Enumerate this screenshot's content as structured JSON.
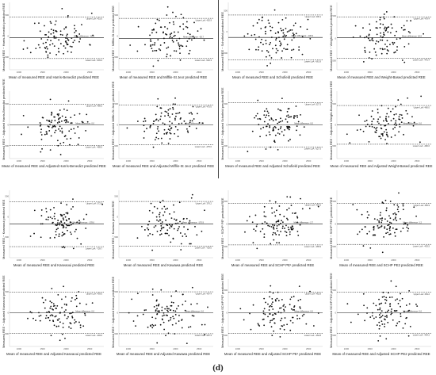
{
  "caption": "(d)",
  "chart_data": [
    {
      "type": "scatter",
      "xlabel": "Mean of measured REE and Harris-Benedict predicted REE",
      "ylabel": "Measured REE − Harris-Benedict predicted REE",
      "mean_label": "Mean difference: -40.9",
      "upper_label": "Upper LoA: 451.6",
      "lower_label": "Lower LoA: -533.4",
      "x_ticks": [
        "1000",
        "1500",
        "2000",
        "2500"
      ],
      "y_ticks": [
        "-500",
        "0",
        "500"
      ],
      "mean": -40.9,
      "upper": 451.6,
      "lower": -533.4,
      "xlim": [
        800,
        2800
      ],
      "ylim": [
        -800,
        800
      ],
      "seed": 11
    },
    {
      "type": "scatter",
      "xlabel": "Mean of measured REE and Mifflin-St Jeor predicted REE",
      "ylabel": "Measured REE − Mifflin-St Jeor predicted REE",
      "mean_label": "Mean difference: -55.7",
      "upper_label": "Upper LoA: 420.9",
      "lower_label": "Lower LoA: -532.3",
      "x_ticks": [
        "1000",
        "1500",
        "2000",
        "2500"
      ],
      "y_ticks": [
        "-500",
        "0",
        "500"
      ],
      "mean": -55.7,
      "upper": 420.9,
      "lower": -532.3,
      "xlim": [
        800,
        2800
      ],
      "ylim": [
        -800,
        800
      ],
      "seed": 23
    },
    {
      "type": "scatter",
      "xlabel": "Mean of measured REE and Schofield predicted REE",
      "ylabel": "Measured REE − Schofield predicted REE",
      "mean_label": "Mean difference: -130.9",
      "upper_label": "Upper LoA: 400.1",
      "lower_label": "Lower LoA: -661.9",
      "x_ticks": [
        "1000",
        "1500",
        "2000",
        "2500"
      ],
      "y_ticks": [
        "-500",
        "0",
        "500"
      ],
      "mean": -130.9,
      "upper": 400.1,
      "lower": -661.9,
      "xlim": [
        800,
        2800
      ],
      "ylim": [
        -900,
        700
      ],
      "seed": 37
    },
    {
      "type": "scatter",
      "xlabel": "Mean of measured REE and Weight-Based predicted REE",
      "ylabel": "Measured REE − Weight-Based predicted REE",
      "mean_label": "Mean difference: 18.5",
      "upper_label": "Upper LoA: 478.4",
      "lower_label": "Lower LoA: -441.4",
      "x_ticks": [
        "1000",
        "1500",
        "2000",
        "2500"
      ],
      "y_ticks": [
        "-500",
        "0",
        "500"
      ],
      "mean": 18.5,
      "upper": 478.4,
      "lower": -441.4,
      "xlim": [
        800,
        2800
      ],
      "ylim": [
        -700,
        800
      ],
      "seed": 41
    },
    {
      "type": "scatter",
      "xlabel": "Mean of measured REE and Adjusted Harris-Benedict predicted REE",
      "ylabel": "Measured REE − Adjusted Harris-Benedict predicted REE",
      "mean_label": "Mean difference: 0.0",
      "upper_label": "Upper LoA: 489.5",
      "lower_label": "Lower LoA: -489.5",
      "x_ticks": [
        "1000",
        "1500",
        "2000",
        "2500"
      ],
      "y_ticks": [
        "-500",
        "0",
        "500"
      ],
      "mean": 0.0,
      "upper": 489.5,
      "lower": -489.5,
      "xlim": [
        800,
        2800
      ],
      "ylim": [
        -800,
        800
      ],
      "seed": 53
    },
    {
      "type": "scatter",
      "xlabel": "Mean of measured REE and Adjusted Mifflin-St Jeor predicted REE",
      "ylabel": "Measured REE − Adjusted Mifflin-St Jeor predicted REE",
      "mean_label": "Mean difference: 0.0",
      "upper_label": "Upper LoA: 475.6",
      "lower_label": "Lower LoA: -475.6",
      "x_ticks": [
        "1000",
        "1500",
        "2000",
        "2500"
      ],
      "y_ticks": [
        "-500",
        "0",
        "500"
      ],
      "mean": 0.0,
      "upper": 475.6,
      "lower": -475.6,
      "xlim": [
        800,
        2800
      ],
      "ylim": [
        -800,
        800
      ],
      "seed": 67
    },
    {
      "type": "scatter",
      "xlabel": "Mean of measured REE and Adjusted Schofield predicted REE",
      "ylabel": "Measured REE − Adjusted Schofield predicted REE",
      "mean_label": "Mean difference: 0.0",
      "upper_label": "Upper LoA: 527.3",
      "lower_label": "Lower LoA: -527.3",
      "x_ticks": [
        "1000",
        "1500",
        "2000",
        "2500"
      ],
      "y_ticks": [
        "-500",
        "0",
        "500"
      ],
      "mean": 0.0,
      "upper": 527.3,
      "lower": -527.3,
      "xlim": [
        800,
        2800
      ],
      "ylim": [
        -800,
        800
      ],
      "seed": 71
    },
    {
      "type": "scatter",
      "xlabel": "Mean of measured REE and Adjusted Weight-Based predicted REE",
      "ylabel": "Measured REE − Adjusted Weight-Based predicted REE",
      "mean_label": "Mean difference: 0.0",
      "upper_label": "Upper LoA: 460.0",
      "lower_label": "Lower LoA: -460.0",
      "x_ticks": [
        "1000",
        "1500",
        "2000",
        "2500"
      ],
      "y_ticks": [
        "-500",
        "0",
        "500"
      ],
      "mean": 0.0,
      "upper": 460.0,
      "lower": -460.0,
      "xlim": [
        800,
        2800
      ],
      "ylim": [
        -800,
        800
      ],
      "seed": 83
    },
    {
      "type": "scatter",
      "xlabel": "Mean of measured REE and Kaseaoui predicted REE",
      "ylabel": "Measured REE − Kaseaoui predicted REE",
      "mean_label": "Mean difference: -178.6",
      "upper_label": "Upper LoA: 372.5",
      "lower_label": "Lower LoA: -729.7",
      "x_ticks": [
        "1000",
        "1500",
        "2000",
        "2500"
      ],
      "y_ticks": [
        "-500",
        "0",
        "500"
      ],
      "mean": -178.6,
      "upper": 372.5,
      "lower": -729.7,
      "xlim": [
        800,
        2800
      ],
      "ylim": [
        -1000,
        650
      ],
      "seed": 97
    },
    {
      "type": "scatter",
      "xlabel": "Mean of measured REE and Kawawa predicted REE",
      "ylabel": "Measured REE − Kawawa predicted REE",
      "mean_label": "Mean difference: -170.9",
      "upper_label": "Upper LoA: 376.2",
      "lower_label": "Lower LoA: -718.0",
      "x_ticks": [
        "1000",
        "1500",
        "2000",
        "2500"
      ],
      "y_ticks": [
        "-500",
        "0",
        "500"
      ],
      "mean": -170.9,
      "upper": 376.2,
      "lower": -718.0,
      "xlim": [
        800,
        2800
      ],
      "ylim": [
        -1000,
        650
      ],
      "seed": 101
    },
    {
      "type": "scatter",
      "xlabel": "Mean of measured REE and SCHP PE¹ predicted REE",
      "ylabel": "Measured REE − SCHP PE¹ predicted REE",
      "mean_label": "Mean difference: -2.7",
      "upper_label": "Upper LoA: 460.5",
      "lower_label": "Lower LoA: -465.9",
      "x_ticks": [
        "1000",
        "1500",
        "2000",
        "2500"
      ],
      "y_ticks": [
        "-500",
        "0",
        "500"
      ],
      "mean": -2.7,
      "upper": 460.5,
      "lower": -465.9,
      "xlim": [
        800,
        2800
      ],
      "ylim": [
        -750,
        750
      ],
      "seed": 113
    },
    {
      "type": "scatter",
      "xlabel": "Mean of measured REE and SCHP PE2 predicted REE",
      "ylabel": "Measured REE − SCHP PE2 predicted REE",
      "mean_label": "Mean difference: 1.2",
      "upper_label": "Upper LoA: 455.9",
      "lower_label": "Lower LoA: -453.5",
      "x_ticks": [
        "1000",
        "1500",
        "2000",
        "2500"
      ],
      "y_ticks": [
        "-500",
        "0",
        "500"
      ],
      "mean": 1.2,
      "upper": 455.9,
      "lower": -453.5,
      "xlim": [
        800,
        2800
      ],
      "ylim": [
        -750,
        750
      ],
      "seed": 127
    },
    {
      "type": "scatter",
      "xlabel": "Mean of measured REE and Adjusted Kaseaoui predicted REE",
      "ylabel": "Measured REE − Adjusted Kaseaoui predicted REE",
      "mean_label": "Mean difference: 0.0",
      "upper_label": "Upper LoA: 493.6",
      "lower_label": "Lower LoA: -493.6",
      "x_ticks": [
        "1000",
        "1500",
        "2000",
        "2500"
      ],
      "y_ticks": [
        "-500",
        "0",
        "500"
      ],
      "mean": 0.0,
      "upper": 493.6,
      "lower": -493.6,
      "xlim": [
        800,
        2800
      ],
      "ylim": [
        -800,
        800
      ],
      "seed": 131
    },
    {
      "type": "scatter",
      "xlabel": "Mean of measured REE and Adjusted Kawawa predicted REE",
      "ylabel": "Measured REE − Adjusted Kawawa predicted REE",
      "mean_label": "Mean difference: 0.0",
      "upper_label": "Upper LoA: 497.4",
      "lower_label": "Lower LoA: -497.4",
      "x_ticks": [
        "1000",
        "1500",
        "2000",
        "2500"
      ],
      "y_ticks": [
        "-500",
        "0",
        "500"
      ],
      "mean": 0.0,
      "upper": 497.4,
      "lower": -497.4,
      "xlim": [
        800,
        2800
      ],
      "ylim": [
        -800,
        800
      ],
      "seed": 139
    },
    {
      "type": "scatter",
      "xlabel": "Mean of measured REE and Adjusted SCHP PE¹ predicted REE",
      "ylabel": "Measured REE − Adjusted SCHP PE¹ predicted REE",
      "mean_label": "Mean difference: 0.0",
      "upper_label": "Upper LoA: 462.8",
      "lower_label": "Lower LoA: -462.8",
      "x_ticks": [
        "1000",
        "1500",
        "2000",
        "2500"
      ],
      "y_ticks": [
        "-500",
        "0",
        "500"
      ],
      "mean": 0.0,
      "upper": 462.8,
      "lower": -462.8,
      "xlim": [
        800,
        2800
      ],
      "ylim": [
        -750,
        750
      ],
      "seed": 149
    },
    {
      "type": "scatter",
      "xlabel": "Mean of measured REE and Adjusted SCHP PE2 predicted REE",
      "ylabel": "Measured REE − Adjusted SCHP PE2 predicted REE",
      "mean_label": "Mean difference: 0.0",
      "upper_label": "Upper LoA: 454.2",
      "lower_label": "Lower LoA: -454.2",
      "x_ticks": [
        "1000",
        "1500",
        "2000",
        "2500"
      ],
      "y_ticks": [
        "-500",
        "0",
        "500"
      ],
      "mean": 0.0,
      "upper": 454.2,
      "lower": -454.2,
      "xlim": [
        800,
        2800
      ],
      "ylim": [
        -750,
        750
      ],
      "seed": 151
    }
  ]
}
